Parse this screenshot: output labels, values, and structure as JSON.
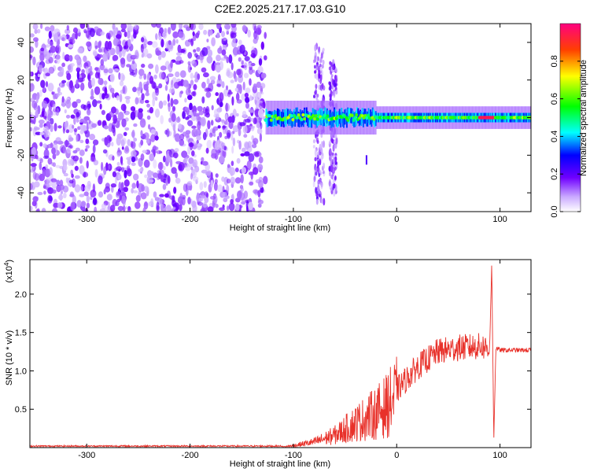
{
  "title": "C2E2.2025.217.17.03.G10",
  "chart_data": [
    {
      "type": "heatmap",
      "xlabel": "Height of straight line (km)",
      "ylabel": "Frequency (Hz)",
      "xlim": [
        -355,
        130
      ],
      "ylim": [
        -50,
        50
      ],
      "xticks": [
        -300,
        -200,
        -100,
        0,
        100
      ],
      "yticks": [
        -40,
        -20,
        0,
        20,
        40
      ],
      "xtick_labels": [
        "-300",
        "-200",
        "-100",
        "0",
        "100"
      ],
      "ytick_labels": [
        "-40",
        "-20",
        "0",
        "20",
        "40"
      ],
      "colorbar": {
        "label": "Normalized spectral amplitude",
        "range": [
          0,
          1
        ],
        "ticks": [
          0.0,
          0.2,
          0.4,
          0.6,
          0.8
        ],
        "tick_labels": [
          "0.0",
          "0.2",
          "0.4",
          "0.6",
          "0.8"
        ],
        "colormap": [
          "#ffffff",
          "#7000ff",
          "#0000ff",
          "#00ffff",
          "#00ff00",
          "#ffff00",
          "#ff0000",
          "#ff0080"
        ]
      },
      "regions": [
        {
          "x": [
            -355,
            -127
          ],
          "freq": [
            -50,
            50
          ],
          "amplitude": 0.05,
          "desc": "noise"
        },
        {
          "x": [
            -127,
            130
          ],
          "freq": [
            -3,
            3
          ],
          "amplitude": 0.5,
          "desc": "carrier line"
        },
        {
          "x": [
            -80,
            -70
          ],
          "freq": [
            -45,
            38
          ],
          "amplitude": 0.08
        },
        {
          "x": [
            -65,
            -58
          ],
          "freq": [
            -40,
            30
          ],
          "amplitude": 0.06
        },
        {
          "x": [
            80,
            95
          ],
          "freq": [
            0,
            0
          ],
          "amplitude": 0.95
        }
      ]
    },
    {
      "type": "line",
      "xlabel": "Height of straight line (km)",
      "ylabel": "SNR (10 * v/v)",
      "yscale_label": "(x10",
      "yscale_exp": "4",
      "yscale_close": ")",
      "xlim": [
        -355,
        130
      ],
      "ylim": [
        0,
        2.45
      ],
      "xticks": [
        -300,
        -200,
        -100,
        0,
        100
      ],
      "yticks": [
        0.5,
        1.0,
        1.5,
        2.0
      ],
      "xtick_labels": [
        "-300",
        "-200",
        "-100",
        "0",
        "100"
      ],
      "ytick_labels": [
        "0.5",
        "1.0",
        "1.5",
        "2.0"
      ],
      "color": "#e8312a",
      "envelope": {
        "x": [
          -355,
          -110,
          -100,
          -80,
          -60,
          -40,
          -20,
          -10,
          0,
          20,
          40,
          60,
          80,
          90,
          92,
          94,
          96,
          100,
          130
        ],
        "y": [
          0.01,
          0.01,
          0.03,
          0.08,
          0.18,
          0.35,
          0.5,
          0.6,
          0.75,
          1.05,
          1.25,
          1.3,
          1.32,
          1.3,
          2.4,
          0.1,
          1.3,
          1.27,
          1.27
        ]
      }
    }
  ]
}
